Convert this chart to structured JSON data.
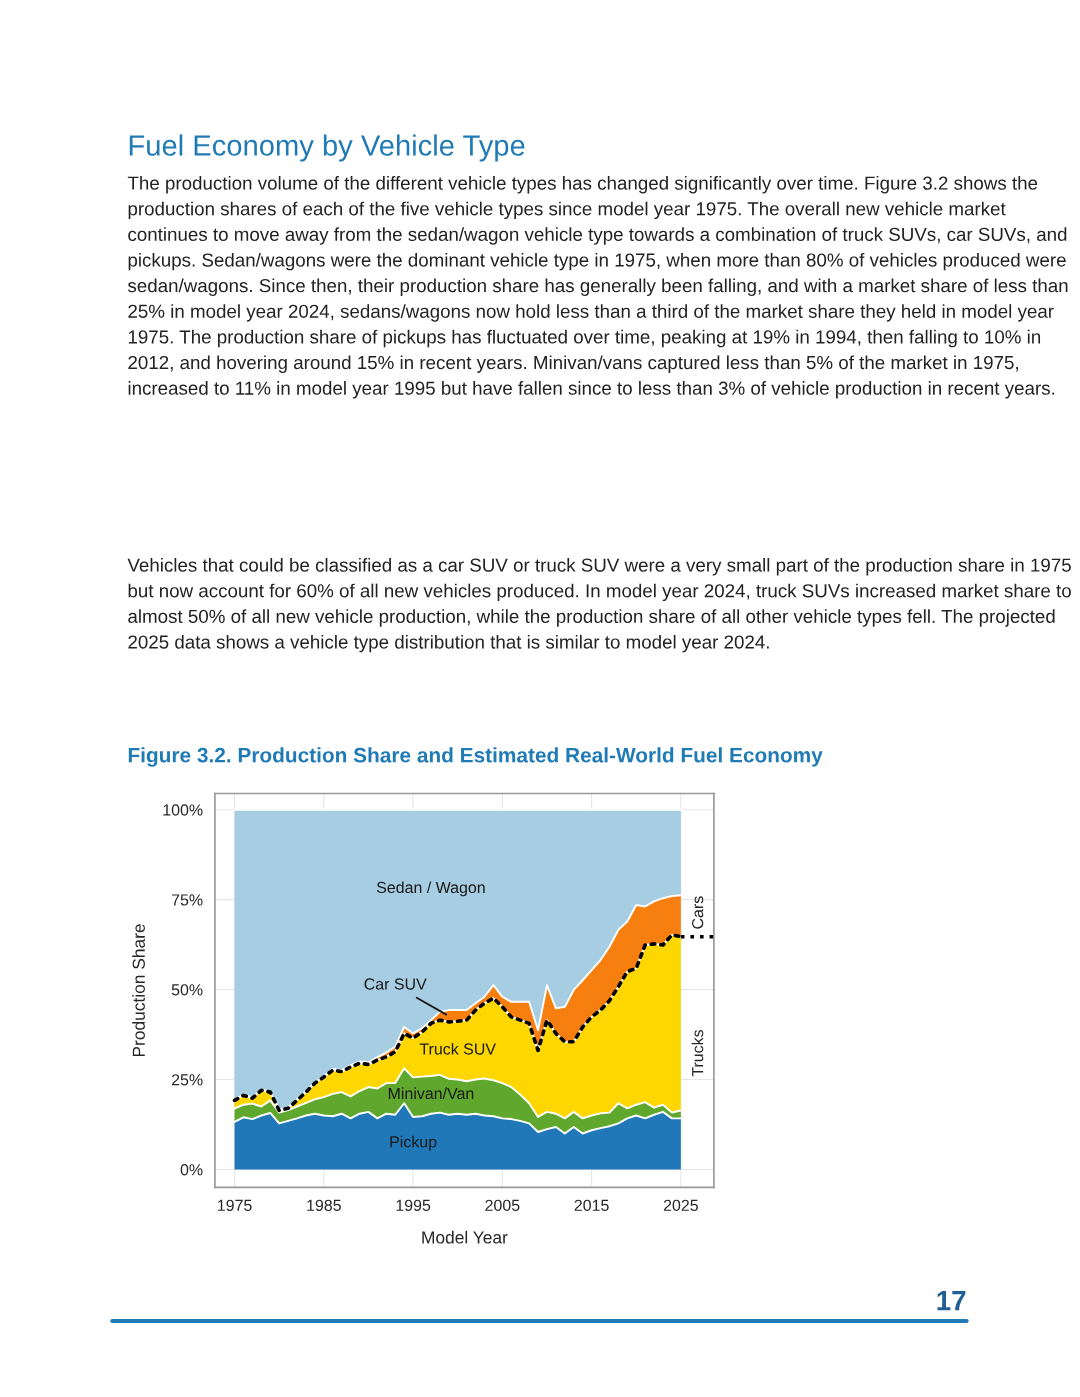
{
  "chart_data": {
    "type": "area",
    "stacked": true,
    "title": "Figure 3.2. Production Share and Estimated Real-World Fuel Economy",
    "xlabel": "Model Year",
    "ylabel": "Production Share",
    "x": [
      1975,
      1976,
      1977,
      1978,
      1979,
      1980,
      1981,
      1982,
      1983,
      1984,
      1985,
      1986,
      1987,
      1988,
      1989,
      1990,
      1991,
      1992,
      1993,
      1994,
      1995,
      1996,
      1997,
      1998,
      1999,
      2000,
      2001,
      2002,
      2003,
      2004,
      2005,
      2006,
      2007,
      2008,
      2009,
      2010,
      2011,
      2012,
      2013,
      2014,
      2015,
      2016,
      2017,
      2018,
      2019,
      2020,
      2021,
      2022,
      2023,
      2024,
      2025
    ],
    "series": [
      {
        "name": "Pickup",
        "color": "#2178b8",
        "values": [
          13.2,
          14.5,
          14.0,
          15.0,
          15.7,
          12.8,
          13.5,
          14.2,
          15.0,
          15.5,
          15.0,
          14.8,
          15.5,
          14.2,
          15.5,
          16.0,
          14.2,
          15.5,
          15.2,
          18.4,
          14.6,
          14.8,
          15.5,
          15.8,
          15.2,
          15.5,
          15.2,
          15.5,
          15.0,
          14.8,
          14.2,
          14.0,
          13.5,
          12.8,
          10.4,
          11.2,
          11.8,
          10.0,
          11.8,
          10.0,
          10.9,
          11.5,
          12.0,
          12.8,
          14.2,
          15.0,
          14.2,
          15.2,
          16.0,
          14.2,
          14.2
        ]
      },
      {
        "name": "Minivan/Van",
        "color": "#5fa82d",
        "values": [
          3.7,
          3.5,
          4.3,
          2.5,
          3.5,
          3.0,
          3.0,
          3.3,
          3.5,
          4.0,
          5.1,
          6.2,
          6.0,
          6.1,
          6.3,
          6.9,
          8.3,
          8.5,
          8.8,
          9.7,
          11.0,
          11.0,
          10.5,
          10.5,
          10.0,
          9.5,
          9.3,
          9.5,
          10.3,
          10.0,
          9.8,
          8.9,
          7.3,
          5.6,
          4.2,
          4.8,
          3.7,
          4.2,
          4.2,
          4.2,
          4.1,
          4.1,
          3.8,
          5.6,
          2.8,
          3.0,
          4.5,
          2.0,
          2.0,
          1.6,
          2.2
        ]
      },
      {
        "name": "Truck SUV",
        "color": "#fed700",
        "line_style": "dotted",
        "values": [
          2.3,
          2.6,
          1.5,
          4.5,
          2.3,
          0.6,
          0.5,
          1.7,
          3.0,
          4.5,
          5.6,
          6.6,
          5.7,
          8.2,
          7.7,
          6.3,
          7.9,
          7.3,
          8.7,
          9.7,
          10.9,
          12.4,
          14.6,
          15.2,
          15.8,
          16.2,
          17.0,
          19.3,
          20.9,
          22.8,
          21.2,
          19.5,
          20.7,
          22.2,
          18.5,
          25.5,
          22.3,
          21.3,
          19.5,
          25.4,
          27.4,
          28.7,
          31.1,
          32.4,
          38.0,
          37.9,
          43.7,
          45.5,
          44.4,
          49.4,
          48.3
        ]
      },
      {
        "name": "Car SUV",
        "color": "#f77f0f",
        "values": [
          0.2,
          0.2,
          0.2,
          0.2,
          0.2,
          0.2,
          0.2,
          0.2,
          0.2,
          0.2,
          0.2,
          0.3,
          0.4,
          0.5,
          0.5,
          0.6,
          0.8,
          1.2,
          1.4,
          1.8,
          1.3,
          1.0,
          0.9,
          2.3,
          3.3,
          3.1,
          2.8,
          1.9,
          1.8,
          3.6,
          2.8,
          4.2,
          5.1,
          6.0,
          5.6,
          9.7,
          7.0,
          9.7,
          14.4,
          13.0,
          13.0,
          13.9,
          15.0,
          15.8,
          13.9,
          17.6,
          10.7,
          11.8,
          13.0,
          10.8,
          11.5
        ]
      },
      {
        "name": "Sedan / Wagon",
        "color": "#a6cde1",
        "values": [
          80.6,
          79.2,
          80.0,
          77.8,
          78.3,
          83.4,
          82.8,
          80.6,
          78.3,
          75.8,
          74.1,
          72.1,
          72.4,
          71.0,
          70.0,
          70.2,
          68.8,
          67.5,
          65.9,
          60.4,
          62.2,
          60.8,
          58.5,
          56.2,
          55.7,
          55.7,
          55.7,
          53.8,
          52.0,
          48.8,
          52.0,
          53.4,
          53.4,
          53.4,
          61.3,
          48.8,
          55.2,
          54.8,
          50.1,
          47.4,
          44.6,
          41.8,
          38.1,
          33.4,
          31.1,
          26.5,
          26.9,
          25.5,
          24.6,
          24.0,
          23.8
        ]
      }
    ],
    "xlim": [
      1972.8,
      2028.7
    ],
    "ylim": [
      -5,
      104.5
    ],
    "xticks": [
      1975,
      1985,
      1995,
      2005,
      2015,
      2025
    ],
    "yticks": [
      {
        "value": 0,
        "label": "0%"
      },
      {
        "value": 25,
        "label": "25%"
      },
      {
        "value": 50,
        "label": "50%"
      },
      {
        "value": 75,
        "label": "75%"
      },
      {
        "value": 100,
        "label": "100%"
      }
    ],
    "grid": true,
    "legend": false,
    "annotations": [
      "Fuel Economy by Vehicle Type",
      "The production volume of the different vehicle types has changed significantly over time. Figure 3.2 shows the production shares of each of the five vehicle types since model year 1975. The overall new vehicle market continues to move away from the sedan/wagon vehicle type towards a combination of truck SUVs, car SUVs, and pickups. Sedan/wagons were the dominant vehicle type in 1975, when more than 80% of vehicles produced were sedan/wagons. Since then, their production share has generally been falling, and with a market share of less than 25% in model year 2024, sedans/wagons now hold less than a third of the market share they held in model year 1975. The production share of pickups has fluctuated over time, peaking at 19% in 1994, then falling to 10% in 2012, and hovering around 15% in recent years. Minivan/vans captured less than 5% of the market in 1975, increased to 11% in model year 1995 but have fallen since to less than 3% of vehicle production in recent years.",
      "Vehicles that could be classified as a car SUV or truck SUV were a very small part of the production share in 1975 but now account for 60% of all new vehicles produced. In model year 2024, truck SUVs increased market share to almost 50% of all new vehicle production, while the production share of all other vehicle types fell. The projected 2025 data shows a vehicle type distribution that is similar to model year 2024.",
      "Cars",
      "Trucks",
      "17"
    ]
  }
}
